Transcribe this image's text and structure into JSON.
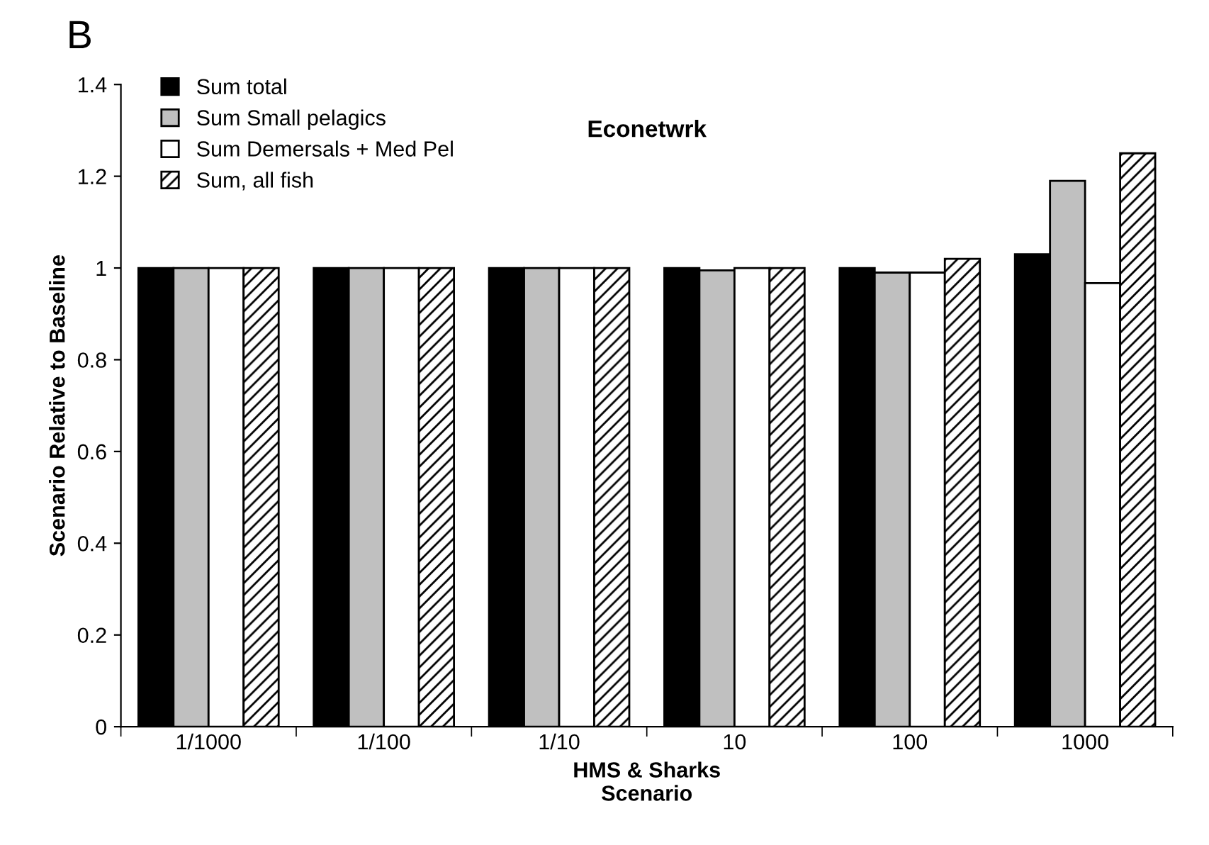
{
  "chart_data": {
    "type": "bar",
    "title": "Econetwrk",
    "xlabel": "HMS & Sharks\nScenario",
    "ylabel": "Scenario Relative to Baseline",
    "annotations": [
      "B"
    ],
    "categories": [
      "1/1000",
      "1/100",
      "1/10",
      "10",
      "100",
      "1000"
    ],
    "series": [
      {
        "name": "Sum total",
        "color": "#000000",
        "values": [
          1,
          1,
          1,
          1,
          1,
          1.03
        ]
      },
      {
        "name": "Sum Small pelagics",
        "color": "#c0c0c0",
        "values": [
          1,
          1,
          1,
          0.995,
          0.99,
          1.19
        ]
      },
      {
        "name": "Sum Demersals + Med Pel",
        "color": "#ffffff",
        "values": [
          1,
          1,
          1,
          1,
          0.99,
          0.967
        ]
      },
      {
        "name": "Sum, all fish",
        "color": "#000000",
        "values": [
          1,
          1,
          1,
          1,
          1.02,
          1.25
        ]
      }
    ],
    "ylim": [
      0,
      1.4
    ],
    "yticks": [
      0,
      0.2,
      0.4,
      0.6,
      0.8,
      1,
      1.2,
      1.4
    ],
    "legend": "top left",
    "grid": false
  }
}
